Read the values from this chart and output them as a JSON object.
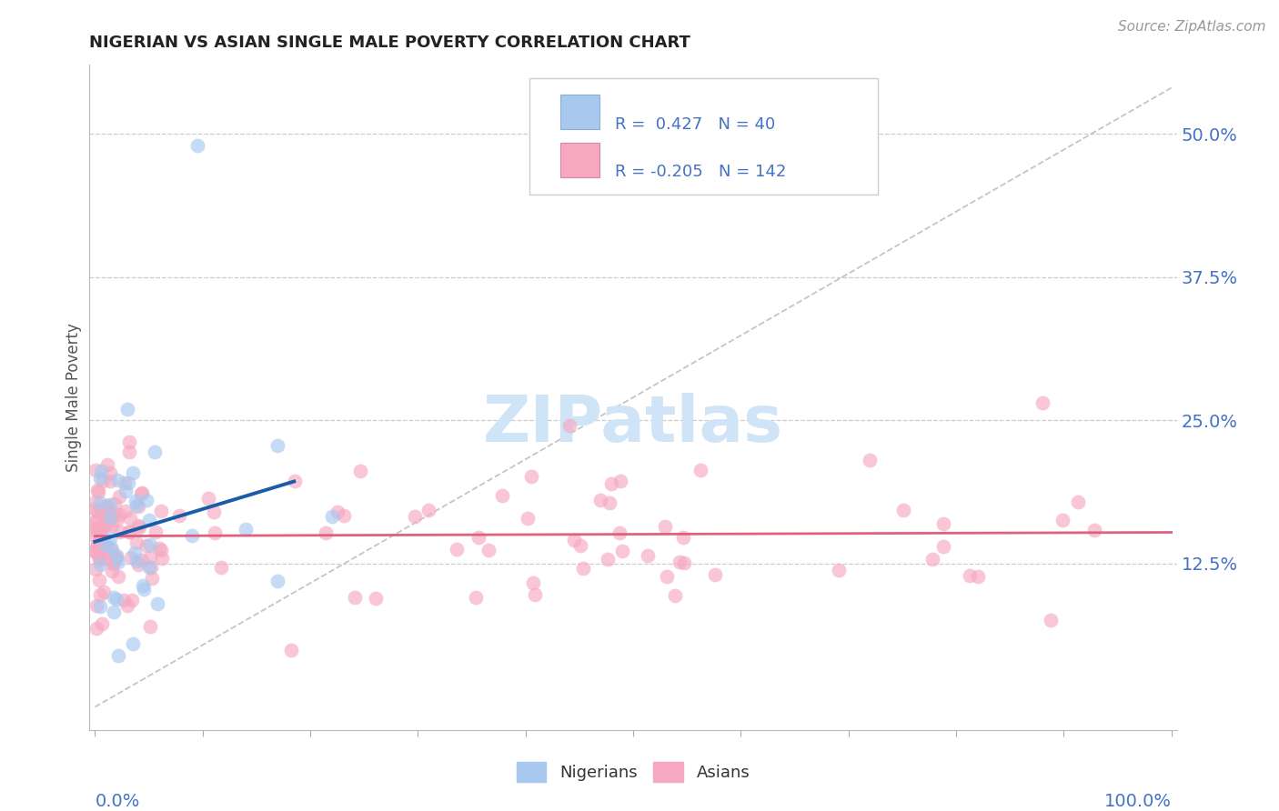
{
  "title": "NIGERIAN VS ASIAN SINGLE MALE POVERTY CORRELATION CHART",
  "source": "Source: ZipAtlas.com",
  "ylabel": "Single Male Poverty",
  "x_tick_labels_left": "0.0%",
  "x_tick_labels_right": "100.0%",
  "y_tick_labels_right": [
    "12.5%",
    "25.0%",
    "37.5%",
    "50.0%"
  ],
  "y_tick_values_right": [
    0.125,
    0.25,
    0.375,
    0.5
  ],
  "nigerian_R": 0.427,
  "nigerian_N": 40,
  "asian_R": -0.205,
  "asian_N": 142,
  "blue_color": "#a8c8f0",
  "pink_color": "#f5a8c0",
  "blue_line_color": "#1a5ca8",
  "pink_line_color": "#e06080",
  "diag_color": "#bbbbbb",
  "grid_color": "#cccccc",
  "watermark_color": "#d0e4f7",
  "watermark": "ZIPatlas",
  "xlim": [
    -0.005,
    1.005
  ],
  "ylim": [
    -0.02,
    0.56
  ]
}
